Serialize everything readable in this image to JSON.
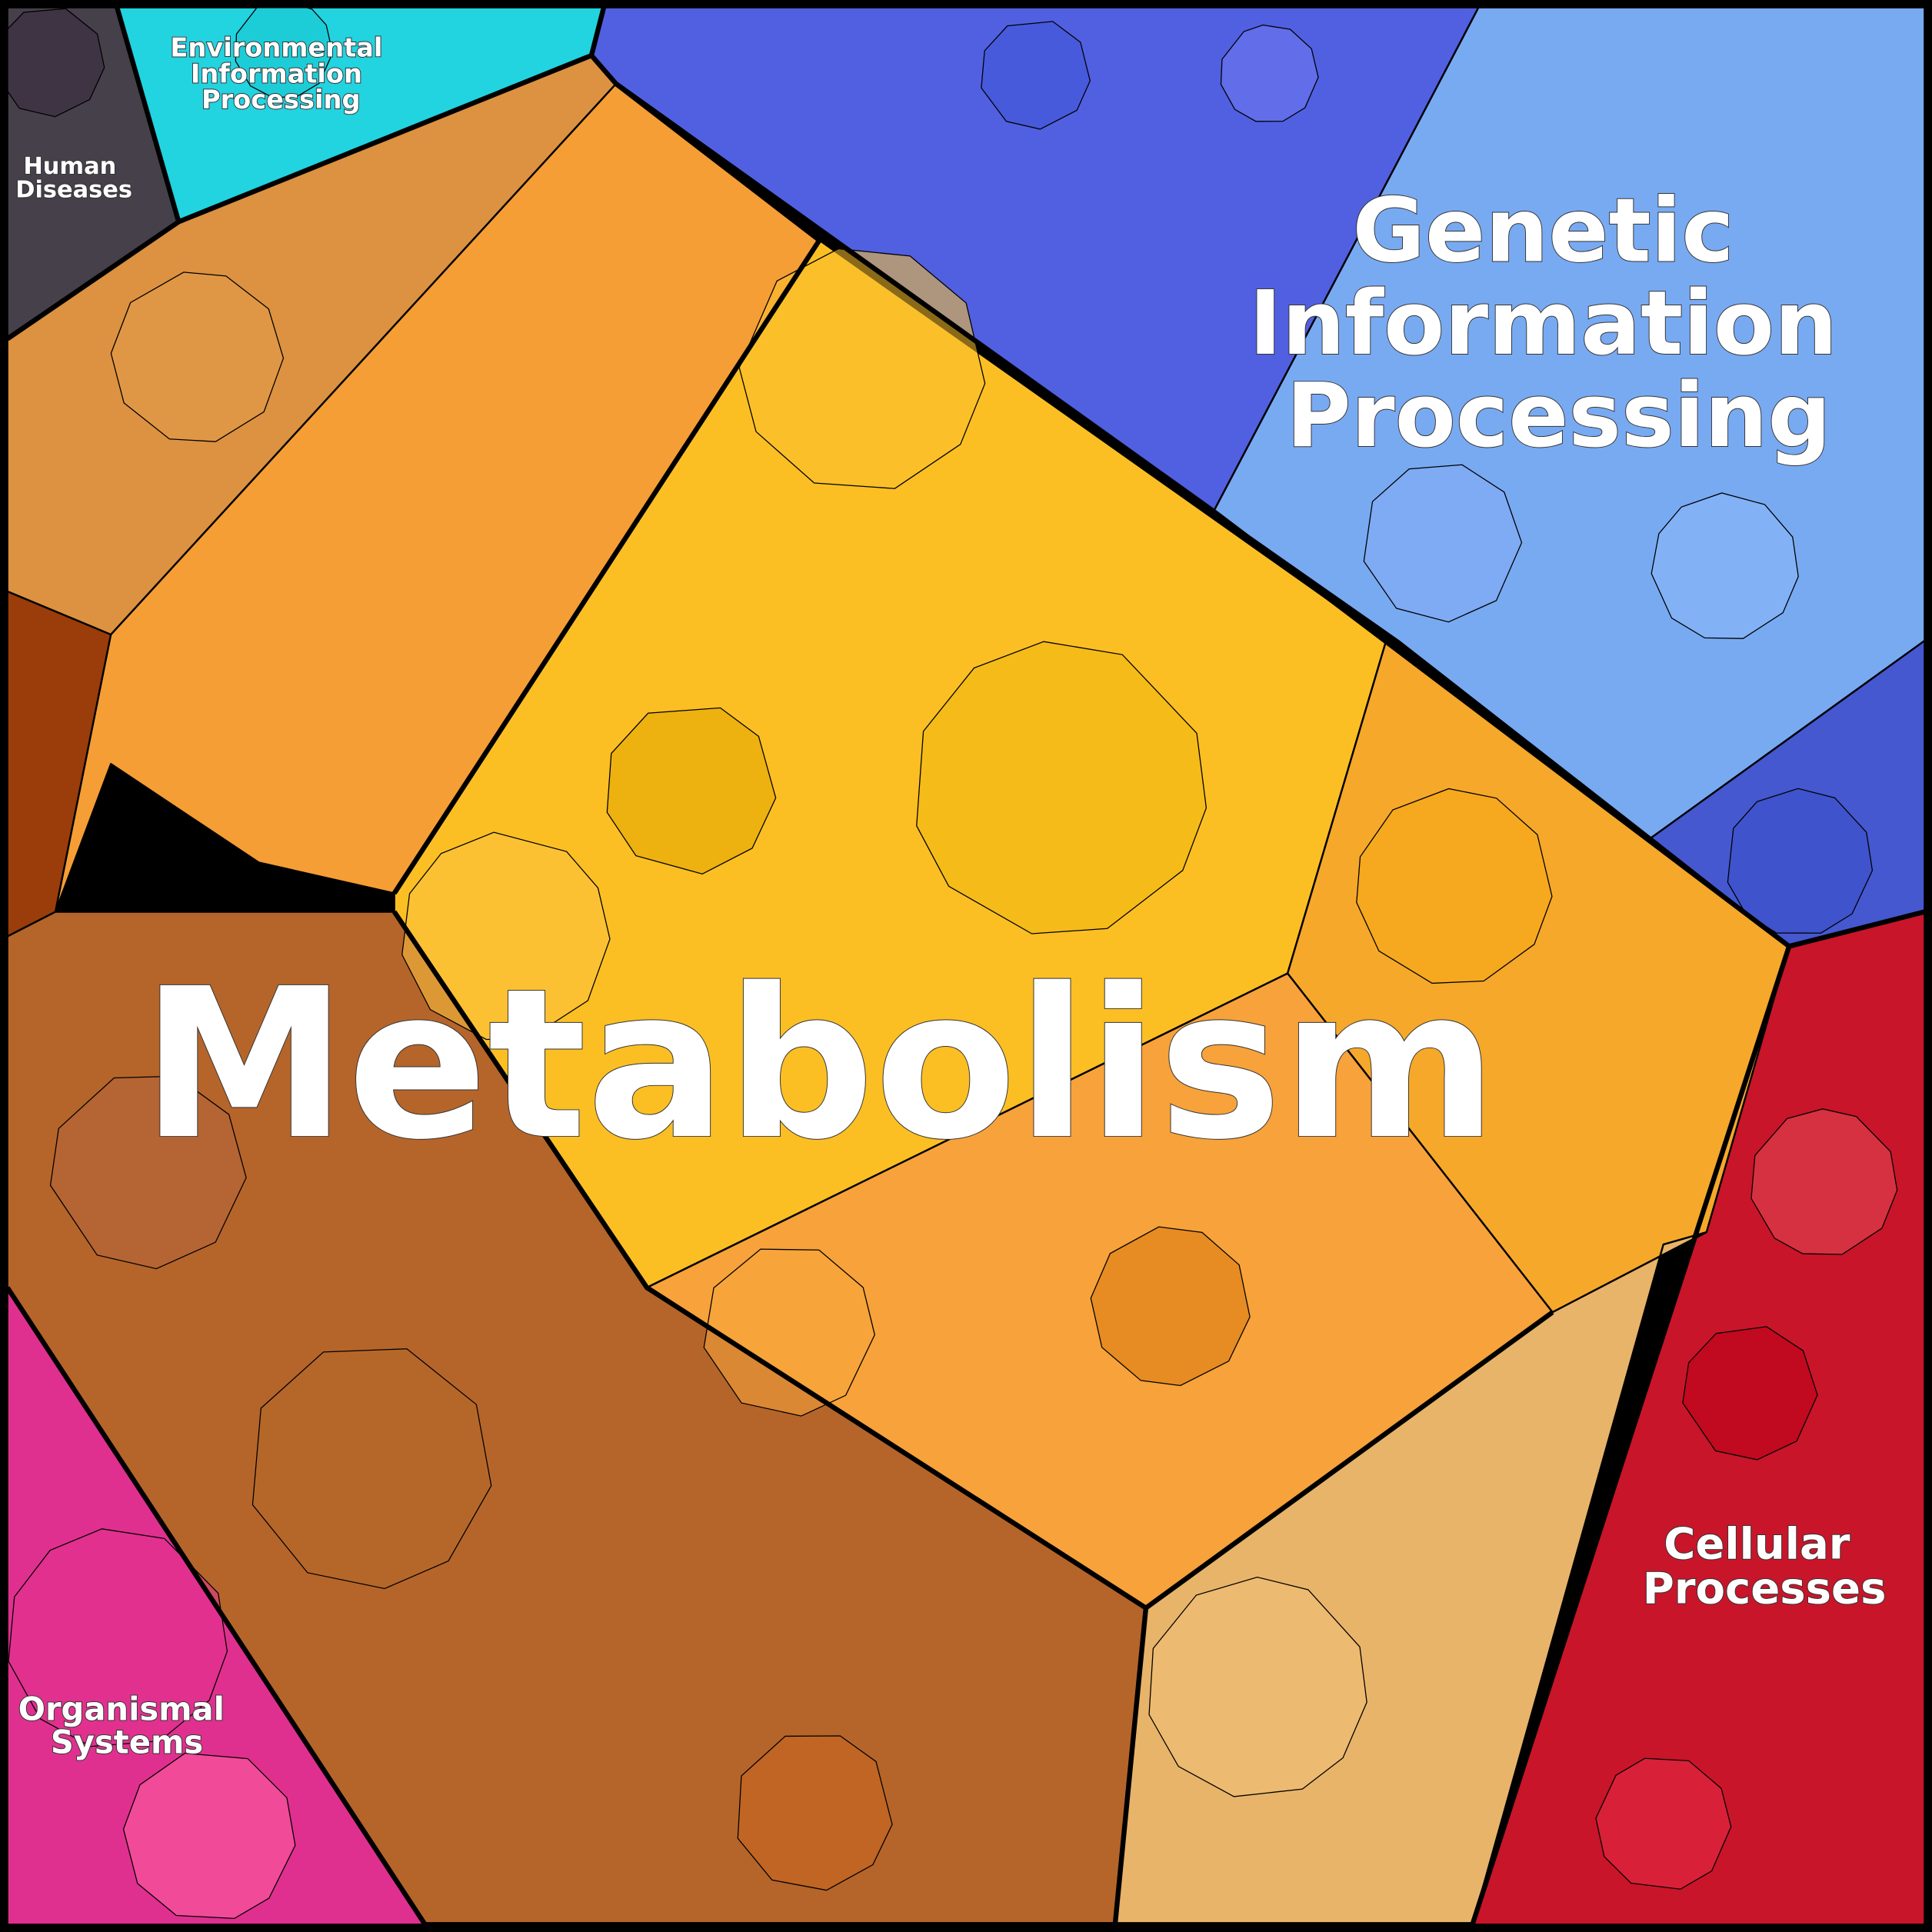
{
  "categories": [
    {
      "label_lines": [
        "Metabolism"
      ],
      "color": "#f2a230"
    },
    {
      "label_lines": [
        "Genetic",
        "Information",
        "Processing"
      ],
      "color": "#6fa0f0"
    },
    {
      "label_lines": [
        "Cellular",
        "Processes"
      ],
      "color": "#c8152a"
    },
    {
      "label_lines": [
        "Organismal",
        "Systems"
      ],
      "color": "#e0308f"
    },
    {
      "label_lines": [
        "Human",
        "Diseases"
      ],
      "color": "#45404a"
    },
    {
      "label_lines": [
        "Environmental",
        "Information",
        "Processing"
      ],
      "color": "#22d3e0"
    }
  ],
  "subregion_colors": {
    "metabolism_orange": "#f59e35",
    "metabolism_yellow": "#fbbf24",
    "metabolism_light_orange": "#f7a23a",
    "metabolism_brown": "#b5652a",
    "metabolism_tan": "#e8b46a",
    "metabolism_topleft": "#dc9240",
    "genetic_dark_blue": "#5060e0",
    "genetic_light_blue": "#78aaf2"
  }
}
